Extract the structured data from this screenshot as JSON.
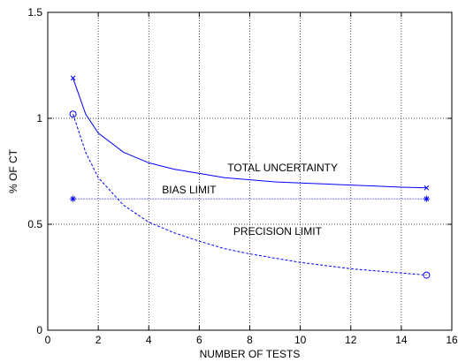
{
  "chart_data": {
    "type": "line",
    "xlabel": "NUMBER OF TESTS",
    "ylabel": "% OF CT",
    "xlim": [
      0,
      16
    ],
    "ylim": [
      0,
      1.5
    ],
    "grid": true,
    "xticks": [
      "0",
      "2",
      "4",
      "6",
      "8",
      "10",
      "12",
      "14",
      "16"
    ],
    "yticks": [
      "0",
      "0.5",
      "1",
      "1.5"
    ],
    "series": [
      {
        "key": "total",
        "label": "TOTAL UNCERTAINTY",
        "style": "solid",
        "marker": "x",
        "color": "#0000ff",
        "x": [
          1,
          1.5,
          2,
          3,
          4,
          5,
          6,
          7,
          8,
          9,
          10,
          11,
          12,
          13,
          14,
          15
        ],
        "y": [
          1.19,
          1.02,
          0.93,
          0.84,
          0.79,
          0.76,
          0.74,
          0.72,
          0.71,
          0.7,
          0.695,
          0.69,
          0.685,
          0.68,
          0.675,
          0.672
        ]
      },
      {
        "key": "bias",
        "label": "BIAS LIMIT",
        "style": "dotted",
        "marker": "*",
        "color": "#0000ff",
        "x": [
          1,
          15
        ],
        "y": [
          0.62,
          0.62
        ]
      },
      {
        "key": "precision",
        "label": "PRECISION LIMIT",
        "style": "dashed",
        "marker": "o",
        "color": "#0000ff",
        "x": [
          1,
          1.5,
          2,
          3,
          4,
          5,
          6,
          7,
          8,
          9,
          10,
          11,
          12,
          13,
          14,
          15
        ],
        "y": [
          1.02,
          0.84,
          0.72,
          0.59,
          0.51,
          0.46,
          0.42,
          0.385,
          0.36,
          0.34,
          0.32,
          0.305,
          0.29,
          0.28,
          0.27,
          0.26
        ]
      }
    ],
    "annotations": {
      "total": {
        "text": "TOTAL UNCERTAINTY",
        "x": 9.3,
        "y": 0.75
      },
      "bias": {
        "text": "BIAS LIMIT",
        "x": 5.6,
        "y": 0.645
      },
      "precision": {
        "text": "PRECISION LIMIT",
        "x": 9.1,
        "y": 0.45
      }
    }
  }
}
